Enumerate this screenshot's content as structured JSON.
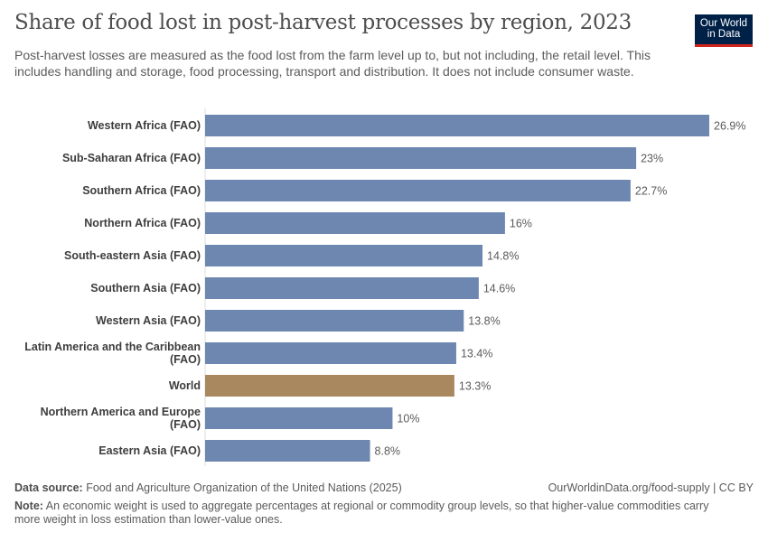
{
  "title": "Share of food lost in post-harvest processes by region, 2023",
  "subtitle": "Post-harvest losses are measured as the food lost from the farm level up to, but not including, the retail level. This includes handling and storage, food processing, transport and distribution. It does not include consumer waste.",
  "logo": {
    "line1": "Our World",
    "line2": "in Data"
  },
  "footer": {
    "source_label": "Data source:",
    "source": "Food and Agriculture Organization of the United Nations (2025)",
    "url": "OurWorldinData.org/food-supply | CC BY",
    "note_label": "Note:",
    "note": "An economic weight is used to aggregate percentages at regional or commodity group levels, so that higher-value commodities carry more weight in loss estimation than lower-value ones."
  },
  "chart_data": {
    "type": "bar",
    "orientation": "horizontal",
    "unit": "%",
    "categories": [
      "Western Africa (FAO)",
      "Sub-Saharan Africa (FAO)",
      "Southern Africa (FAO)",
      "Northern Africa (FAO)",
      "South-eastern Asia (FAO)",
      "Southern Asia (FAO)",
      "Western Asia (FAO)",
      "Latin America and the Caribbean (FAO)",
      "World",
      "Northern America and Europe (FAO)",
      "Eastern Asia (FAO)"
    ],
    "values": [
      26.9,
      23,
      22.7,
      16,
      14.8,
      14.6,
      13.8,
      13.4,
      13.3,
      10,
      8.8
    ],
    "labels": [
      "26.9%",
      "23%",
      "22.7%",
      "16%",
      "14.8%",
      "14.6%",
      "13.8%",
      "13.4%",
      "13.3%",
      "10%",
      "8.8%"
    ],
    "colors": {
      "default": "#6d87b0",
      "World": "#a98860"
    },
    "xlim": [
      0,
      26.9
    ]
  }
}
